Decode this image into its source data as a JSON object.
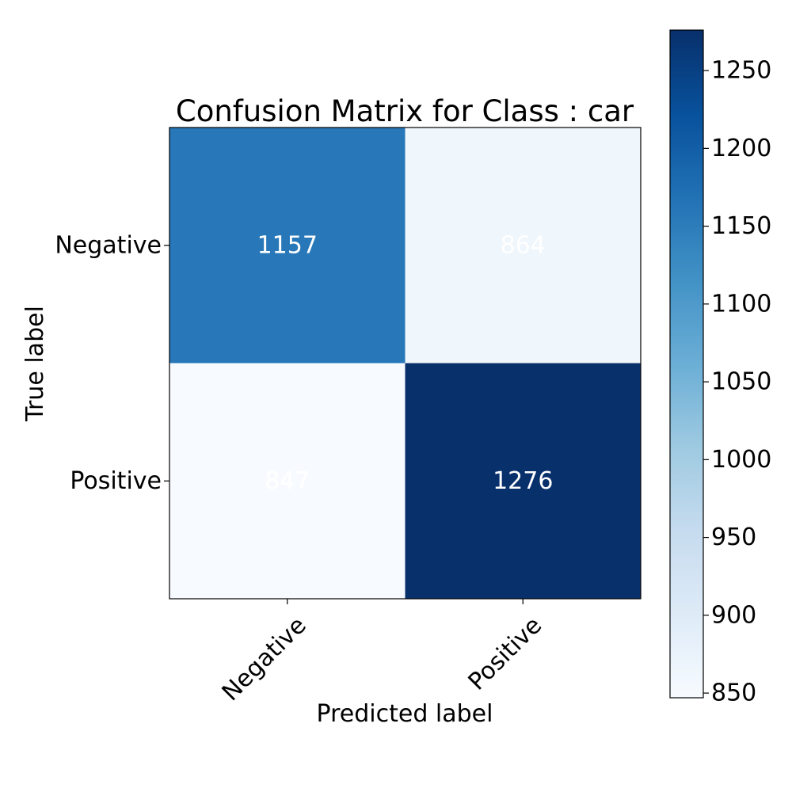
{
  "chart_data": {
    "type": "heatmap",
    "title": "Confusion Matrix for Class : car",
    "xlabel": "Predicted label",
    "ylabel": "True label",
    "x_categories": [
      "Negative",
      "Positive"
    ],
    "y_categories": [
      "Negative",
      "Positive"
    ],
    "values": [
      [
        1157,
        864
      ],
      [
        847,
        1276
      ]
    ],
    "colormap": "Blues",
    "text_color": "#ffffff",
    "colorbar": {
      "min": 847,
      "max": 1276,
      "ticks": [
        850,
        900,
        950,
        1000,
        1050,
        1100,
        1150,
        1200,
        1250
      ],
      "tick_labels": [
        "850",
        "900",
        "950",
        "1000",
        "1050",
        "1100",
        "1150",
        "1200",
        "1250"
      ]
    },
    "colors": {
      "low": "#f7fbff",
      "high": "#08306b"
    }
  }
}
